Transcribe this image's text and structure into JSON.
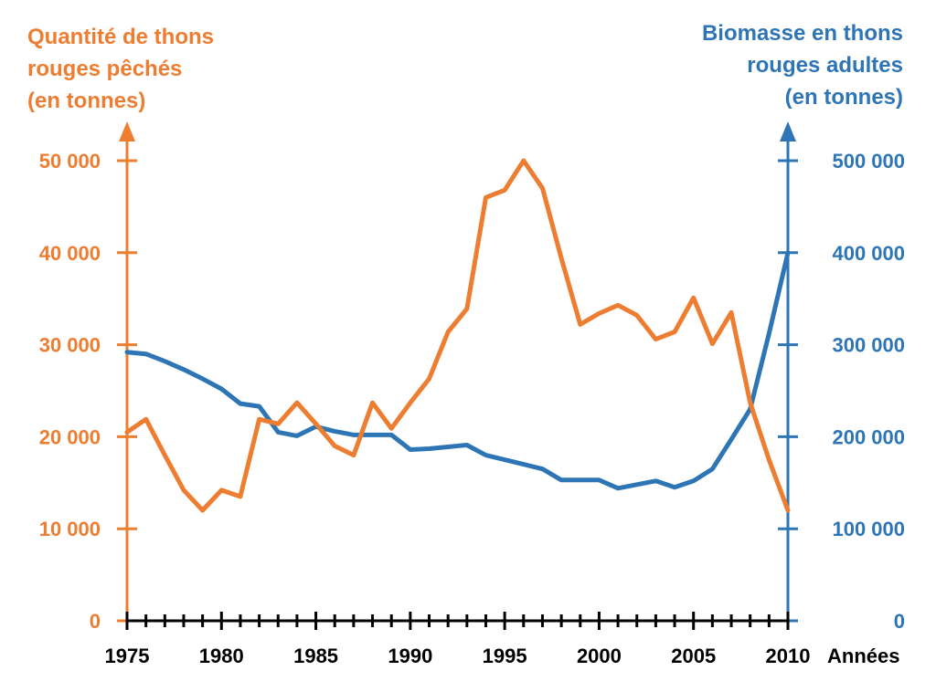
{
  "chart_data": {
    "type": "line",
    "xlabel": "Années",
    "x_ticks": [
      1975,
      1980,
      1985,
      1990,
      1995,
      2000,
      2005,
      2010
    ],
    "xlim": [
      1975,
      2010
    ],
    "left_axis": {
      "title_lines": [
        "Quantité de thons",
        "rouges pêchés",
        "(en tonnes)"
      ],
      "ticks": [
        0,
        10000,
        20000,
        30000,
        40000,
        50000
      ],
      "tick_labels": [
        "0",
        "10 000",
        "20 000",
        "30 000",
        "40 000",
        "50 000"
      ],
      "ylim": [
        0,
        50000
      ],
      "color": "#ED7D31"
    },
    "right_axis": {
      "title_lines": [
        "Biomasse en thons",
        "rouges adultes",
        "(en tonnes)"
      ],
      "ticks": [
        0,
        100000,
        200000,
        300000,
        400000,
        500000
      ],
      "tick_labels": [
        "0",
        "100 000",
        "200 000",
        "300 000",
        "400 000",
        "500 000"
      ],
      "ylim": [
        0,
        500000
      ],
      "color": "#2E75B6"
    },
    "series": [
      {
        "axis": "left",
        "color": "#ED7D31",
        "x": [
          1975,
          1976,
          1977,
          1978,
          1979,
          1980,
          1981,
          1982,
          1983,
          1984,
          1985,
          1986,
          1987,
          1988,
          1989,
          1990,
          1991,
          1992,
          1993,
          1994,
          1995,
          1996,
          1997,
          1998,
          1999,
          2000,
          2001,
          2002,
          2003,
          2004,
          2005,
          2006,
          2007,
          2008,
          2009,
          2010
        ],
        "values": [
          20500,
          21900,
          18000,
          14200,
          12000,
          14200,
          13500,
          21900,
          21400,
          23700,
          21400,
          19000,
          18000,
          23700,
          20900,
          23700,
          26300,
          31400,
          33900,
          46000,
          46800,
          50000,
          47000,
          39400,
          32200,
          33400,
          34300,
          33200,
          30600,
          31400,
          35100,
          30100,
          33500,
          23700,
          17500,
          12000
        ]
      },
      {
        "axis": "right",
        "color": "#2E75B6",
        "x": [
          1975,
          1976,
          1977,
          1978,
          1979,
          1980,
          1981,
          1982,
          1983,
          1984,
          1985,
          1986,
          1987,
          1988,
          1989,
          1990,
          1991,
          1992,
          1993,
          1994,
          1995,
          1996,
          1997,
          1998,
          1999,
          2000,
          2001,
          2002,
          2003,
          2004,
          2005,
          2006,
          2007,
          2008,
          2009,
          2010
        ],
        "values": [
          292000,
          290000,
          282000,
          273000,
          263000,
          252000,
          236000,
          233000,
          205000,
          201000,
          211000,
          206000,
          202000,
          202000,
          202000,
          186000,
          187000,
          189000,
          191000,
          180000,
          175000,
          170000,
          165000,
          153000,
          153000,
          153000,
          144000,
          148000,
          152000,
          145000,
          152000,
          165000,
          197000,
          230000,
          312000,
          400000
        ]
      }
    ]
  }
}
